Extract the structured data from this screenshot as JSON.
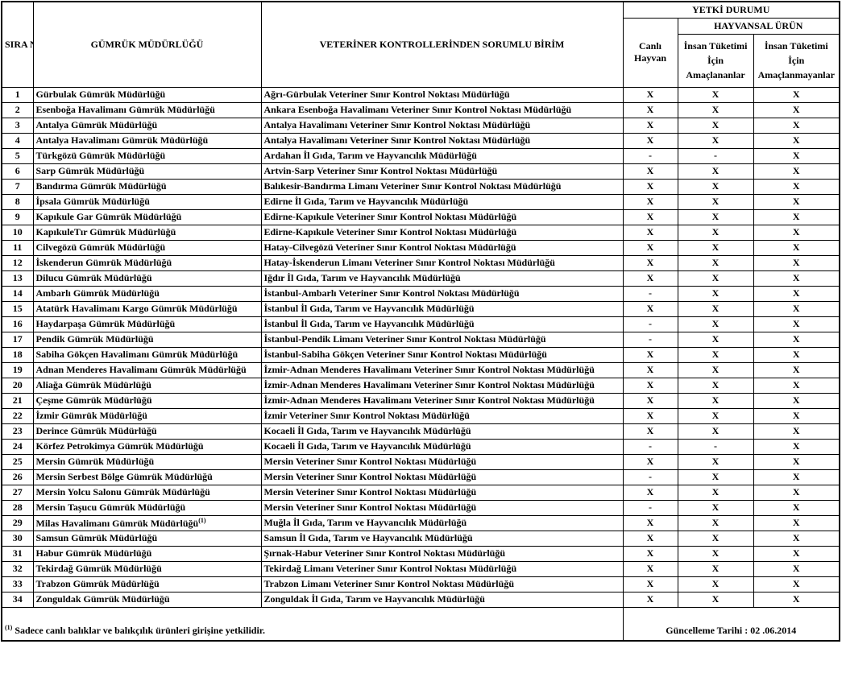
{
  "header": {
    "sira_no": "SIRA NO",
    "gumruk": "GÜMRÜK MÜDÜRLÜĞÜ",
    "birim": "VETERİNER KONTROLLERİNDEN SORUMLU BİRİM",
    "yetki": "YETKİ DURUMU",
    "hayvansal": "HAYVANSAL ÜRÜN",
    "canli": "Canlı Hayvan",
    "insan_amac": "İnsan Tüketimi İçin Amaçlananlar",
    "insan_amac_degil": "İnsan Tüketimi İçin Amaçlanmayanlar"
  },
  "rows": [
    {
      "no": "1",
      "gumruk": "Gürbulak Gümrük Müdürlüğü",
      "birim": "Ağrı-Gürbulak Veteriner Sınır Kontrol Noktası Müdürlüğü",
      "canli": "X",
      "insan": "X",
      "diger": "X"
    },
    {
      "no": "2",
      "gumruk": "Esenboğa Havalimanı Gümrük Müdürlüğü",
      "birim": "Ankara Esenboğa Havalimanı Veteriner Sınır Kontrol Noktası Müdürlüğü",
      "canli": "X",
      "insan": "X",
      "diger": "X"
    },
    {
      "no": "3",
      "gumruk": "Antalya Gümrük Müdürlüğü",
      "birim": "Antalya Havalimanı Veteriner Sınır Kontrol Noktası Müdürlüğü",
      "canli": "X",
      "insan": "X",
      "diger": "X"
    },
    {
      "no": "4",
      "gumruk": "Antalya Havalimanı Gümrük Müdürlüğü",
      "birim": "Antalya Havalimanı Veteriner Sınır Kontrol Noktası Müdürlüğü",
      "canli": "X",
      "insan": "X",
      "diger": "X"
    },
    {
      "no": "5",
      "gumruk": "Türkgözü Gümrük Müdürlüğü",
      "birim": "Ardahan İl Gıda, Tarım ve Hayvancılık Müdürlüğü",
      "canli": "-",
      "insan": "-",
      "diger": "X"
    },
    {
      "no": "6",
      "gumruk": "Sarp Gümrük Müdürlüğü",
      "birim": "Artvin-Sarp Veteriner Sınır Kontrol Noktası Müdürlüğü",
      "canli": "X",
      "insan": "X",
      "diger": "X"
    },
    {
      "no": "7",
      "gumruk": "Bandırma Gümrük Müdürlüğü",
      "birim": "Balıkesir-Bandırma Limanı Veteriner Sınır Kontrol Noktası Müdürlüğü",
      "canli": "X",
      "insan": "X",
      "diger": "X"
    },
    {
      "no": "8",
      "gumruk": "İpsala Gümrük Müdürlüğü",
      "birim": "Edirne İl Gıda, Tarım ve Hayvancılık Müdürlüğü",
      "canli": "X",
      "insan": "X",
      "diger": "X"
    },
    {
      "no": "9",
      "gumruk": "Kapıkule Gar Gümrük Müdürlüğü",
      "birim": "Edirne-Kapıkule Veteriner Sınır Kontrol Noktası Müdürlüğü",
      "canli": "X",
      "insan": "X",
      "diger": "X"
    },
    {
      "no": "10",
      "gumruk": "KapıkuleTır Gümrük Müdürlüğü",
      "birim": "Edirne-Kapıkule Veteriner Sınır Kontrol Noktası Müdürlüğü",
      "canli": "X",
      "insan": "X",
      "diger": "X"
    },
    {
      "no": "11",
      "gumruk": "Cilvegözü Gümrük Müdürlüğü",
      "birim": "Hatay-Cilvegözü Veteriner Sınır Kontrol Noktası Müdürlüğü",
      "canli": "X",
      "insan": "X",
      "diger": "X"
    },
    {
      "no": "12",
      "gumruk": "İskenderun Gümrük Müdürlüğü",
      "birim": "Hatay-İskenderun Limanı Veteriner Sınır Kontrol Noktası Müdürlüğü",
      "canli": "X",
      "insan": "X",
      "diger": "X"
    },
    {
      "no": "13",
      "gumruk": "Dilucu Gümrük Müdürlüğü",
      "birim": "Iğdır İl Gıda, Tarım ve Hayvancılık Müdürlüğü",
      "canli": "X",
      "insan": "X",
      "diger": "X"
    },
    {
      "no": "14",
      "gumruk": "Ambarlı Gümrük Müdürlüğü",
      "birim": "İstanbul-Ambarlı Veteriner Sınır Kontrol Noktası Müdürlüğü",
      "canli": "-",
      "insan": "X",
      "diger": "X"
    },
    {
      "no": "15",
      "gumruk": "Atatürk Havalimanı Kargo Gümrük Müdürlüğü",
      "birim": "İstanbul İl Gıda, Tarım ve Hayvancılık Müdürlüğü",
      "canli": "X",
      "insan": "X",
      "diger": "X"
    },
    {
      "no": "16",
      "gumruk": "Haydarpaşa Gümrük Müdürlüğü",
      "birim": "İstanbul İl Gıda, Tarım ve Hayvancılık Müdürlüğü",
      "canli": "-",
      "insan": "X",
      "diger": "X"
    },
    {
      "no": "17",
      "gumruk": "Pendik Gümrük Müdürlüğü",
      "birim": "İstanbul-Pendik Limanı Veteriner Sınır Kontrol Noktası Müdürlüğü",
      "canli": "-",
      "insan": "X",
      "diger": "X"
    },
    {
      "no": "18",
      "gumruk": "Sabiha Gökçen Havalimanı Gümrük Müdürlüğü",
      "birim": "İstanbul-Sabiha Gökçen Veteriner Sınır Kontrol Noktası Müdürlüğü",
      "canli": "X",
      "insan": "X",
      "diger": "X"
    },
    {
      "no": "19",
      "gumruk": "Adnan Menderes Havalimanı Gümrük Müdürlüğü",
      "birim": "İzmir-Adnan Menderes Havalimanı Veteriner Sınır Kontrol Noktası Müdürlüğü",
      "canli": "X",
      "insan": "X",
      "diger": "X"
    },
    {
      "no": "20",
      "gumruk": "Aliağa Gümrük Müdürlüğü",
      "birim": "İzmir-Adnan Menderes Havalimanı Veteriner Sınır Kontrol Noktası Müdürlüğü",
      "canli": "X",
      "insan": "X",
      "diger": "X"
    },
    {
      "no": "21",
      "gumruk": "Çeşme Gümrük Müdürlüğü",
      "birim": "İzmir-Adnan Menderes Havalimanı Veteriner Sınır Kontrol Noktası Müdürlüğü",
      "canli": "X",
      "insan": "X",
      "diger": "X"
    },
    {
      "no": "22",
      "gumruk": "İzmir Gümrük Müdürlüğü",
      "birim": "İzmir Veteriner Sınır Kontrol Noktası Müdürlüğü",
      "canli": "X",
      "insan": "X",
      "diger": "X"
    },
    {
      "no": "23",
      "gumruk": "Derince Gümrük Müdürlüğü",
      "birim": "Kocaeli İl Gıda, Tarım ve Hayvancılık Müdürlüğü",
      "canli": "X",
      "insan": "X",
      "diger": "X"
    },
    {
      "no": "24",
      "gumruk": "Körfez Petrokimya Gümrük Müdürlüğü",
      "birim": "Kocaeli İl Gıda, Tarım ve Hayvancılık Müdürlüğü",
      "canli": "-",
      "insan": "-",
      "diger": "X"
    },
    {
      "no": "25",
      "gumruk": "Mersin Gümrük Müdürlüğü",
      "birim": "Mersin Veteriner Sınır Kontrol Noktası Müdürlüğü",
      "canli": "X",
      "insan": "X",
      "diger": "X"
    },
    {
      "no": "26",
      "gumruk": "Mersin Serbest Bölge Gümrük Müdürlüğü",
      "birim": "Mersin Veteriner Sınır Kontrol Noktası Müdürlüğü",
      "canli": "-",
      "insan": "X",
      "diger": "X"
    },
    {
      "no": "27",
      "gumruk": "Mersin Yolcu Salonu Gümrük Müdürlüğü",
      "birim": "Mersin Veteriner Sınır Kontrol Noktası Müdürlüğü",
      "canli": "X",
      "insan": "X",
      "diger": "X"
    },
    {
      "no": "28",
      "gumruk": "Mersin Taşucu Gümrük Müdürlüğü",
      "birim": "Mersin Veteriner Sınır Kontrol Noktası Müdürlüğü",
      "canli": "-",
      "insan": "X",
      "diger": "X"
    },
    {
      "no": "29",
      "gumruk": "Milas Havalimanı Gümrük Müdürlüğü",
      "sup": "(1)",
      "birim": "Muğla İl Gıda, Tarım ve Hayvancılık Müdürlüğü",
      "canli": "X",
      "insan": "X",
      "diger": "X"
    },
    {
      "no": "30",
      "gumruk": "Samsun Gümrük Müdürlüğü",
      "birim": "Samsun İl Gıda, Tarım ve Hayvancılık Müdürlüğü",
      "canli": "X",
      "insan": "X",
      "diger": "X"
    },
    {
      "no": "31",
      "gumruk": "Habur Gümrük Müdürlüğü",
      "birim": "Şırnak-Habur Veteriner Sınır Kontrol Noktası Müdürlüğü",
      "canli": "X",
      "insan": "X",
      "diger": "X"
    },
    {
      "no": "32",
      "gumruk": "Tekirdağ Gümrük Müdürlüğü",
      "birim": "Tekirdağ Limanı Veteriner Sınır Kontrol Noktası Müdürlüğü",
      "canli": "X",
      "insan": "X",
      "diger": "X"
    },
    {
      "no": "33",
      "gumruk": "Trabzon Gümrük Müdürlüğü",
      "birim": "Trabzon Limanı Veteriner Sınır Kontrol Noktası Müdürlüğü",
      "canli": "X",
      "insan": "X",
      "diger": "X"
    },
    {
      "no": "34",
      "gumruk": "Zonguldak Gümrük Müdürlüğü",
      "birim": "Zonguldak İl Gıda, Tarım ve Hayvancılık Müdürlüğü",
      "canli": "X",
      "insan": "X",
      "diger": "X"
    }
  ],
  "footer": {
    "note_sup": "(1)",
    "note": " Sadece canlı balıklar ve balıkçılık ürünleri girişine yetkilidir.",
    "update": "Güncelleme Tarihi : 02 .06.2014"
  }
}
